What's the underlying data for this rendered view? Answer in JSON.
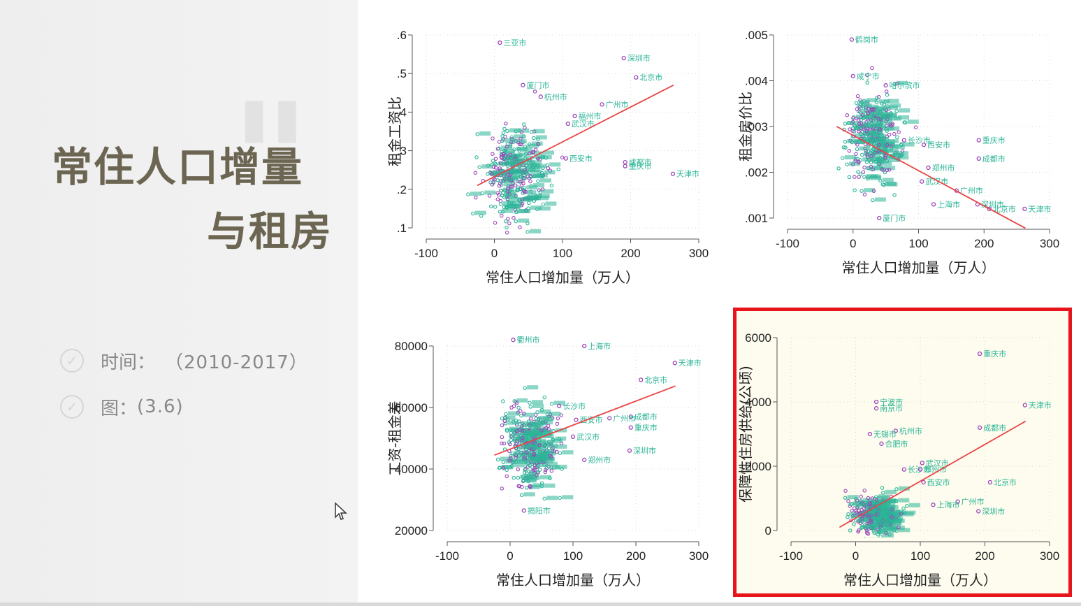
{
  "slide": {
    "title_line1": "常住人口增量",
    "title_line2": "与租房",
    "info": [
      {
        "label": "时间：",
        "value": "（2010-2017）"
      },
      {
        "label": "图：",
        "value": "(3.6)"
      }
    ]
  },
  "colors": {
    "purple": "#9b46b8",
    "teal": "#2bb597",
    "fit": "#e84545",
    "highlight": "#e8141c"
  },
  "chart_data": [
    {
      "type": "scatter",
      "title": "",
      "xlabel": "常住人口增加量（万人）",
      "ylabel": "租金工资比",
      "xlim": [
        -100,
        300
      ],
      "ylim": [
        0.1,
        0.6
      ],
      "xticks": [
        -100,
        0,
        100,
        200,
        300
      ],
      "xtick_labels": [
        "-100",
        "0",
        "100",
        "200",
        "300"
      ],
      "yticks": [
        0.1,
        0.2,
        0.3,
        0.4,
        0.5,
        0.6
      ],
      "ytick_labels": [
        ".1",
        ".2",
        ".3",
        ".4",
        ".5",
        ".6"
      ],
      "fit_line": {
        "x": [
          -25,
          263
        ],
        "y": [
          0.21,
          0.47
        ]
      },
      "cluster": {
        "x_center": 30,
        "x_spread": 38,
        "y_center": 0.24,
        "y_spread": 0.1,
        "n": 320,
        "seed": 11
      },
      "labeled_points": [
        {
          "label": "三亚市",
          "x": 8,
          "y": 0.58
        },
        {
          "label": "深圳市",
          "x": 190,
          "y": 0.54
        },
        {
          "label": "北京市",
          "x": 208,
          "y": 0.49
        },
        {
          "label": "广州市",
          "x": 158,
          "y": 0.42
        },
        {
          "label": "福州市",
          "x": 118,
          "y": 0.39
        },
        {
          "label": "武汉市",
          "x": 108,
          "y": 0.37
        },
        {
          "label": "西安市",
          "x": 105,
          "y": 0.28
        },
        {
          "label": "成都市",
          "x": 192,
          "y": 0.27
        },
        {
          "label": "重庆市",
          "x": 192,
          "y": 0.26
        },
        {
          "label": "天津市",
          "x": 262,
          "y": 0.24
        },
        {
          "label": "厦门市",
          "x": 42,
          "y": 0.47
        },
        {
          "label": "杭州市",
          "x": 68,
          "y": 0.44
        }
      ]
    },
    {
      "type": "scatter",
      "title": "",
      "xlabel": "常住人口增加量（万人）",
      "ylabel": "租金房价比",
      "xlim": [
        -100,
        300
      ],
      "ylim": [
        0.001,
        0.005
      ],
      "xticks": [
        -100,
        0,
        100,
        200,
        300
      ],
      "xtick_labels": [
        "-100",
        "0",
        "100",
        "200",
        "300"
      ],
      "yticks": [
        0.001,
        0.002,
        0.003,
        0.004,
        0.005
      ],
      "ytick_labels": [
        ".001",
        ".002",
        ".003",
        ".004",
        ".005"
      ],
      "fit_line": {
        "x": [
          -25,
          263
        ],
        "y": [
          0.003,
          0.00078
        ]
      },
      "cluster": {
        "x_center": 30,
        "x_spread": 35,
        "y_center": 0.0028,
        "y_spread": 0.0008,
        "n": 320,
        "seed": 23
      },
      "labeled_points": [
        {
          "label": "鹤岗市",
          "x": -2,
          "y": 0.0049
        },
        {
          "label": "咸宁市",
          "x": 0,
          "y": 0.0041
        },
        {
          "label": "哈尔滨市",
          "x": 50,
          "y": 0.0039
        },
        {
          "label": "重庆市",
          "x": 192,
          "y": 0.0027
        },
        {
          "label": "成都市",
          "x": 192,
          "y": 0.0023
        },
        {
          "label": "长沙市",
          "x": 78,
          "y": 0.0027
        },
        {
          "label": "西安市",
          "x": 108,
          "y": 0.0026
        },
        {
          "label": "郑州市",
          "x": 115,
          "y": 0.0021
        },
        {
          "label": "武汉市",
          "x": 105,
          "y": 0.0018
        },
        {
          "label": "广州市",
          "x": 158,
          "y": 0.0016
        },
        {
          "label": "上海市",
          "x": 123,
          "y": 0.0013
        },
        {
          "label": "深圳市",
          "x": 190,
          "y": 0.0013
        },
        {
          "label": "北京市",
          "x": 208,
          "y": 0.0012
        },
        {
          "label": "天津市",
          "x": 262,
          "y": 0.0012
        },
        {
          "label": "厦门市",
          "x": 40,
          "y": 0.001
        }
      ]
    },
    {
      "type": "scatter",
      "title": "",
      "xlabel": "常住人口增加量（万人）",
      "ylabel": "工资-租金差",
      "xlim": [
        -100,
        300
      ],
      "ylim": [
        20000,
        80000
      ],
      "xticks": [
        -100,
        0,
        100,
        200,
        300
      ],
      "xtick_labels": [
        "-100",
        "0",
        "100",
        "200",
        "300"
      ],
      "yticks": [
        20000,
        40000,
        60000,
        80000
      ],
      "ytick_labels": [
        "20000",
        "40000",
        "60000",
        "80000"
      ],
      "fit_line": {
        "x": [
          -25,
          263
        ],
        "y": [
          44500,
          67000
        ]
      },
      "cluster": {
        "x_center": 30,
        "x_spread": 36,
        "y_center": 48000,
        "y_spread": 11000,
        "n": 320,
        "seed": 37
      },
      "labeled_points": [
        {
          "label": "衢州市",
          "x": 5,
          "y": 82000
        },
        {
          "label": "上海市",
          "x": 118,
          "y": 80000
        },
        {
          "label": "天津市",
          "x": 262,
          "y": 74500
        },
        {
          "label": "北京市",
          "x": 208,
          "y": 69000
        },
        {
          "label": "长沙市",
          "x": 78,
          "y": 60500
        },
        {
          "label": "成都市",
          "x": 192,
          "y": 57000
        },
        {
          "label": "广州市",
          "x": 158,
          "y": 56500
        },
        {
          "label": "西安市",
          "x": 105,
          "y": 56000
        },
        {
          "label": "重庆市",
          "x": 192,
          "y": 53500
        },
        {
          "label": "武汉市",
          "x": 100,
          "y": 50500
        },
        {
          "label": "深圳市",
          "x": 190,
          "y": 46000
        },
        {
          "label": "郑州市",
          "x": 118,
          "y": 43000
        },
        {
          "label": "揭阳市",
          "x": 22,
          "y": 26500
        }
      ]
    },
    {
      "type": "scatter",
      "title": "",
      "xlabel": "常住人口增加量（万人）",
      "ylabel": "保障性住房供给(公顷)",
      "xlim": [
        -100,
        300
      ],
      "ylim": [
        0,
        6000
      ],
      "xticks": [
        -100,
        0,
        100,
        200,
        300
      ],
      "xtick_labels": [
        "-100",
        "0",
        "100",
        "200",
        "300"
      ],
      "yticks": [
        0,
        2000,
        4000,
        6000
      ],
      "ytick_labels": [
        "0",
        "2000",
        "4000",
        "6000"
      ],
      "fit_line": {
        "x": [
          -25,
          263
        ],
        "y": [
          100,
          3400
        ]
      },
      "cluster": {
        "x_center": 30,
        "x_spread": 30,
        "y_center": 500,
        "y_spread": 500,
        "n": 300,
        "seed": 53
      },
      "labeled_points": [
        {
          "label": "重庆市",
          "x": 192,
          "y": 5500
        },
        {
          "label": "宁波市",
          "x": 32,
          "y": 4000
        },
        {
          "label": "南京市",
          "x": 32,
          "y": 3800
        },
        {
          "label": "天津市",
          "x": 262,
          "y": 3900
        },
        {
          "label": "杭州市",
          "x": 62,
          "y": 3100
        },
        {
          "label": "成都市",
          "x": 192,
          "y": 3200
        },
        {
          "label": "无锡市",
          "x": 22,
          "y": 3000
        },
        {
          "label": "合肥市",
          "x": 40,
          "y": 2700
        },
        {
          "label": "武汉市",
          "x": 103,
          "y": 2100
        },
        {
          "label": "长沙市",
          "x": 75,
          "y": 1900
        },
        {
          "label": "郑州市",
          "x": 100,
          "y": 1900
        },
        {
          "label": "西安市",
          "x": 105,
          "y": 1500
        },
        {
          "label": "北京市",
          "x": 208,
          "y": 1500
        },
        {
          "label": "广州市",
          "x": 158,
          "y": 900
        },
        {
          "label": "上海市",
          "x": 120,
          "y": 800
        },
        {
          "label": "深圳市",
          "x": 190,
          "y": 600
        }
      ]
    }
  ]
}
